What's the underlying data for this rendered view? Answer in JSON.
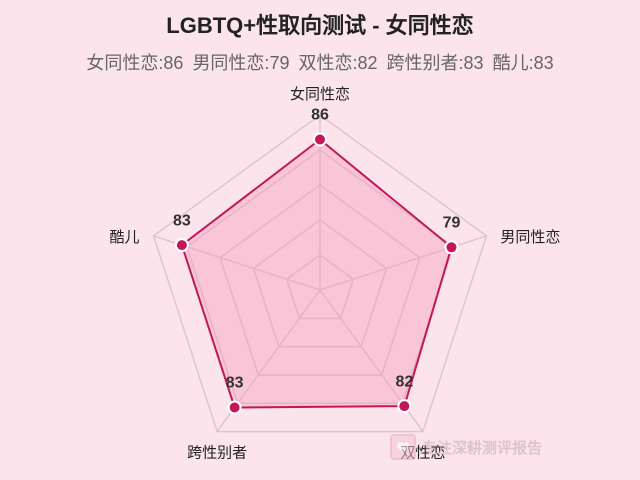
{
  "chart_data": {
    "type": "radar",
    "title": "LGBTQ+性取向测试 - 女同性恋",
    "subtitle_items": [
      "女同性恋:86",
      "男同性恋:79",
      "双性恋:82",
      "跨性别者:83",
      "酷儿:83"
    ],
    "categories": [
      "女同性恋",
      "男同性恋",
      "双性恋",
      "跨性别者",
      "酷儿"
    ],
    "values": [
      86,
      79,
      82,
      83,
      83
    ],
    "rmax": 100,
    "levels": 5,
    "colors": {
      "line": "#c2185b",
      "fill": "#f48fb1",
      "grid": "#e2c3cf",
      "background": "#fbe4ec"
    }
  },
  "watermark": {
    "text": "专注深耕测评报告",
    "icon": "heart-icon"
  }
}
